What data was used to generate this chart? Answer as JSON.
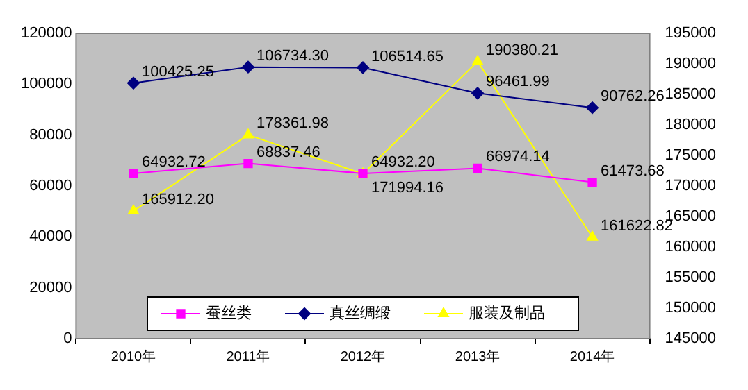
{
  "chart_data": {
    "type": "line",
    "categories": [
      "2010年",
      "2011年",
      "2012年",
      "2013年",
      "2014年"
    ],
    "series": [
      {
        "name": "蚕丝类",
        "color": "#ff00ff",
        "marker": "square",
        "values": [
          64932.72,
          68837.46,
          64932.2,
          66974.14,
          61473.68
        ],
        "value_labels": [
          "64932.72",
          "68837.46",
          "64932.20",
          "66974.14",
          "61473.68"
        ]
      },
      {
        "name": "真丝绸缎",
        "color": "#000080",
        "marker": "diamond",
        "values": [
          100425.25,
          106734.3,
          106514.65,
          96461.99,
          90762.26
        ],
        "value_labels": [
          "100425.25",
          "106734.30",
          "106514.65",
          "96461.99",
          "90762.26"
        ]
      },
      {
        "name": "服装及制品",
        "color": "#ffff00",
        "marker": "triangle",
        "axis": "y2",
        "values": [
          165912.2,
          178361.98,
          171994.16,
          190380.21,
          161622.82
        ],
        "value_labels": [
          "165912.20",
          "178361.98",
          "171994.16",
          "190380.21",
          "161622.82"
        ]
      }
    ],
    "ylim": [
      0,
      120000
    ],
    "yticks": [
      0,
      20000,
      40000,
      60000,
      80000,
      100000,
      120000
    ],
    "y2lim": [
      145000,
      195000
    ],
    "y2ticks": [
      145000,
      150000,
      155000,
      160000,
      165000,
      170000,
      175000,
      180000,
      185000,
      190000,
      195000
    ],
    "grid": false,
    "legend": "bottom"
  }
}
